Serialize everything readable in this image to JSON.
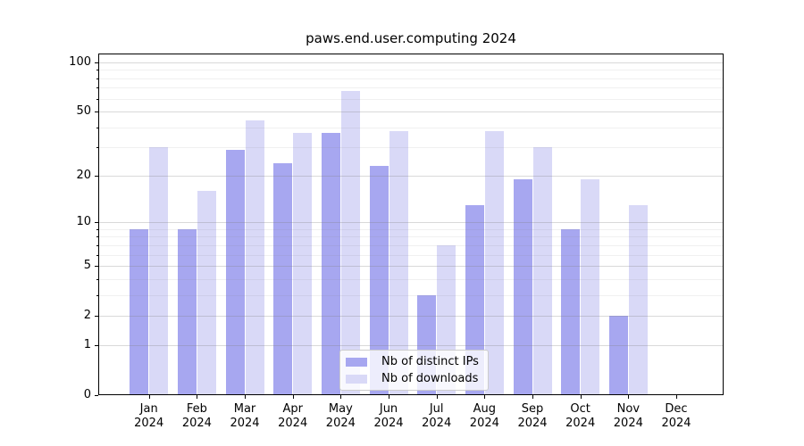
{
  "title": "paws.end.user.computing 2024",
  "legend": {
    "items": [
      {
        "label": "Nb of distinct IPs",
        "color_key": "ips"
      },
      {
        "label": "Nb of downloads",
        "color_key": "downloads"
      }
    ]
  },
  "colors": {
    "ips": "#a7a7f0",
    "downloads": "#d9d9f7",
    "grid_major": "rgba(128,128,128,0.30)",
    "grid_minor": "rgba(128,128,128,0.12)",
    "axis": "#000000",
    "legend_border": "#cccccc",
    "legend_background": "rgba(255,255,255,0.8)"
  },
  "chart_data": {
    "type": "bar",
    "title": "paws.end.user.computing 2024",
    "categories": [
      "Jan 2024",
      "Feb 2024",
      "Mar 2024",
      "Apr 2024",
      "May 2024",
      "Jun 2024",
      "Jul 2024",
      "Aug 2024",
      "Sep 2024",
      "Oct 2024",
      "Nov 2024",
      "Dec 2024"
    ],
    "months": [
      "Jan",
      "Feb",
      "Mar",
      "Apr",
      "May",
      "Jun",
      "Jul",
      "Aug",
      "Sep",
      "Oct",
      "Nov",
      "Dec"
    ],
    "year_label": "2024",
    "series": [
      {
        "name": "Nb of distinct IPs",
        "values": [
          9,
          9,
          29,
          24,
          37,
          23,
          3,
          13,
          19,
          9,
          2,
          0
        ]
      },
      {
        "name": "Nb of downloads",
        "values": [
          30,
          16,
          44,
          37,
          67,
          38,
          7,
          38,
          30,
          19,
          13,
          0
        ]
      }
    ],
    "xlabel": "",
    "ylabel": "",
    "yscale": "log1p",
    "ylim": [
      0,
      114
    ],
    "y_major_ticks": [
      0,
      1,
      2,
      5,
      10,
      20,
      50,
      100
    ],
    "y_major_tick_labels": [
      "0",
      "1",
      "2",
      "5",
      "10",
      "20",
      "50",
      "100"
    ],
    "y_minor_ticks": [
      3,
      4,
      6,
      7,
      8,
      9,
      30,
      40,
      60,
      70,
      80,
      90
    ],
    "grid": true,
    "legend_position": "lower center"
  }
}
